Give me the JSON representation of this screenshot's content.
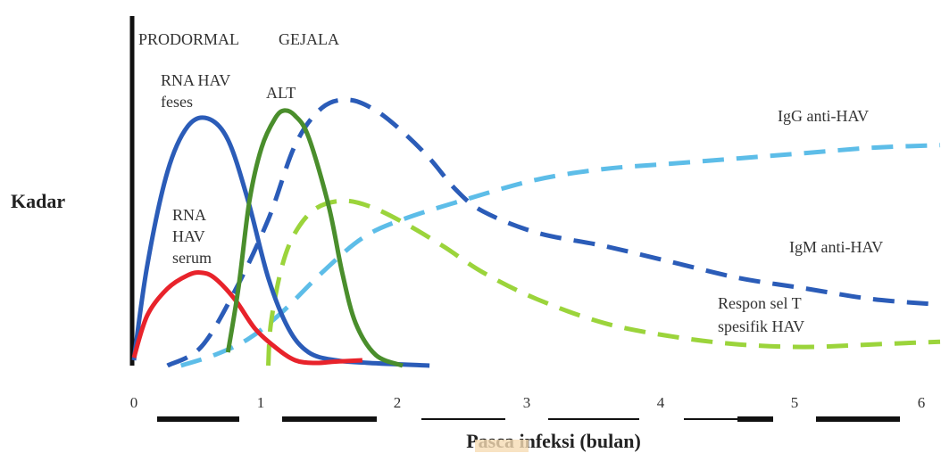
{
  "chart_data": {
    "type": "line",
    "title": "",
    "xlabel": "Pasca infeksi (bulan)",
    "ylabel": "Kadar",
    "xlim": [
      0,
      6
    ],
    "ylim": [
      0,
      1
    ],
    "x_ticks": [
      "0",
      "1",
      "2",
      "3",
      "4",
      "5",
      "6"
    ],
    "phases": [
      "PRODORMAL",
      "GEJALA"
    ],
    "annotations": [
      "RNA HAV feses",
      "ALT",
      "RNA HAV serum",
      "IgG anti-HAV",
      "IgM anti-HAV",
      "Respon sel T spesifik HAV"
    ],
    "series": [
      {
        "name": "RNA HAV feses",
        "color": "#2b5cb8",
        "style": "solid",
        "x": [
          0,
          0.1,
          0.25,
          0.4,
          0.55,
          0.7,
          0.85,
          1.0,
          1.15,
          1.3,
          1.5,
          1.75,
          2.2
        ],
        "y": [
          0.02,
          0.38,
          0.73,
          0.9,
          0.93,
          0.85,
          0.62,
          0.33,
          0.14,
          0.05,
          0.02,
          0.01,
          0.0
        ]
      },
      {
        "name": "RNA HAV serum",
        "color": "#e8232b",
        "style": "solid",
        "x": [
          0,
          0.1,
          0.25,
          0.4,
          0.5,
          0.6,
          0.75,
          0.9,
          1.05,
          1.2,
          1.35,
          1.5,
          1.7
        ],
        "y": [
          0.03,
          0.19,
          0.29,
          0.34,
          0.35,
          0.33,
          0.25,
          0.14,
          0.07,
          0.02,
          0.01,
          0.015,
          0.02
        ]
      },
      {
        "name": "ALT",
        "color": "#4a8e2c",
        "style": "solid",
        "x": [
          0.7,
          0.78,
          0.86,
          0.95,
          1.05,
          1.12,
          1.2,
          1.3,
          1.45,
          1.55,
          1.65,
          1.8,
          2.0
        ],
        "y": [
          0.05,
          0.3,
          0.62,
          0.82,
          0.93,
          0.96,
          0.94,
          0.86,
          0.6,
          0.35,
          0.16,
          0.04,
          0.0
        ]
      },
      {
        "name": "IgM anti-HAV",
        "color": "#2b5cb8",
        "style": "dashed",
        "x": [
          0.25,
          0.5,
          0.75,
          1.0,
          1.2,
          1.4,
          1.6,
          1.8,
          2.0,
          2.2,
          2.4,
          2.6,
          3.0,
          3.5,
          4.0,
          4.5,
          5.0,
          5.5,
          6.0
        ],
        "y": [
          0.0,
          0.07,
          0.28,
          0.55,
          0.83,
          0.97,
          1.0,
          0.96,
          0.88,
          0.78,
          0.66,
          0.58,
          0.5,
          0.45,
          0.39,
          0.33,
          0.29,
          0.25,
          0.23
        ]
      },
      {
        "name": "IgG anti-HAV",
        "color": "#5dbde8",
        "style": "dashed",
        "x": [
          0.35,
          0.6,
          0.85,
          1.1,
          1.4,
          1.7,
          2.0,
          2.5,
          3.0,
          3.5,
          4.0,
          4.5,
          5.0,
          5.5,
          6.0
        ],
        "y": [
          0.0,
          0.04,
          0.1,
          0.2,
          0.35,
          0.48,
          0.55,
          0.63,
          0.7,
          0.74,
          0.76,
          0.78,
          0.8,
          0.82,
          0.83
        ]
      },
      {
        "name": "Respon sel T spesifik HAV",
        "color": "#9bd43b",
        "style": "dashed",
        "x": [
          1.0,
          1.02,
          1.1,
          1.2,
          1.35,
          1.55,
          1.75,
          2.0,
          2.3,
          2.6,
          3.0,
          3.5,
          4.0,
          4.5,
          5.0,
          5.5,
          6.0
        ],
        "y": [
          0.0,
          0.16,
          0.37,
          0.5,
          0.59,
          0.62,
          0.6,
          0.54,
          0.45,
          0.35,
          0.25,
          0.16,
          0.11,
          0.08,
          0.07,
          0.08,
          0.09
        ]
      }
    ]
  }
}
